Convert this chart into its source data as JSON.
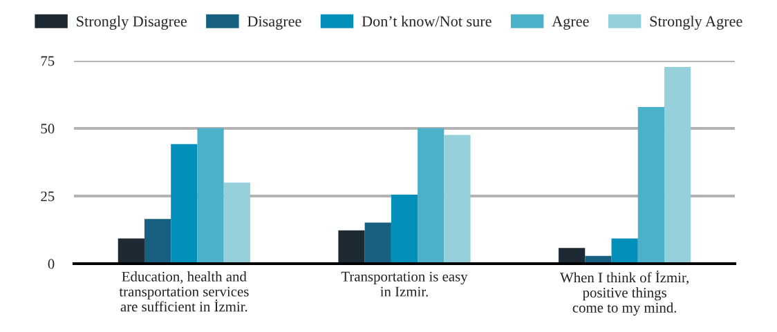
{
  "chart_data": {
    "type": "bar",
    "categories": [
      "Education, health and\ntransportation services\nare sufficient in İzmir.",
      "Transportation is easy\nin Izmir.",
      "When I think of İzmir,\npositive things\ncome to my mind."
    ],
    "series": [
      {
        "name": "Strongly Disagree",
        "color": "#1e2a33",
        "values": [
          9.3,
          12.3,
          5.8
        ]
      },
      {
        "name": "Disagree",
        "color": "#17607f",
        "values": [
          16.5,
          15.2,
          2.9
        ]
      },
      {
        "name": "Don’t know/Not sure",
        "color": "#0290bb",
        "values": [
          44.2,
          25.5,
          9.3
        ]
      },
      {
        "name": "Agree",
        "color": "#4bb1c8",
        "values": [
          50.1,
          50.1,
          57.9
        ]
      },
      {
        "name": "Strongly Agree",
        "color": "#96d0db",
        "values": [
          30.0,
          47.6,
          72.7
        ]
      }
    ],
    "ylim": [
      0,
      75
    ],
    "yticks": [
      0,
      25,
      50,
      75
    ],
    "grid": "y",
    "legend": "top"
  }
}
